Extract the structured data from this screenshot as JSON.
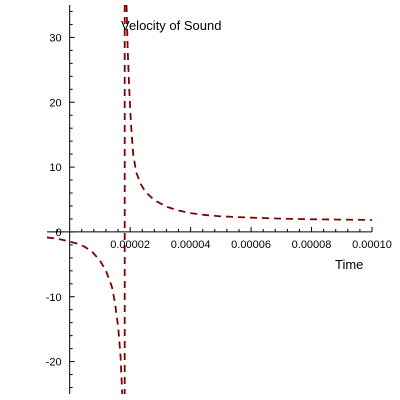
{
  "chart_data": {
    "type": "line",
    "title": "Velocity of Sound",
    "xlabel": "Time",
    "ylabel": "",
    "xlim": [
      -7.5e-06,
      0.0001
    ],
    "ylim": [
      -25,
      35
    ],
    "grid": false,
    "legend": "none",
    "line_color": "#7f0000",
    "line_style": "dashed",
    "x_ticks": [
      {
        "value": 2e-05,
        "label": "0.00002"
      },
      {
        "value": 4e-05,
        "label": "0.00004"
      },
      {
        "value": 6e-05,
        "label": "0.00006"
      },
      {
        "value": 8e-05,
        "label": "0.00008"
      },
      {
        "value": 0.0001,
        "label": "0.00010"
      }
    ],
    "y_ticks": [
      {
        "value": 30,
        "label": "30"
      },
      {
        "value": 20,
        "label": "20"
      },
      {
        "value": 10,
        "label": "10"
      },
      {
        "value": 0,
        "label": "0"
      },
      {
        "value": -10,
        "label": "-10"
      },
      {
        "value": -20,
        "label": "-20"
      }
    ],
    "asymptote_x": 1.82e-05,
    "series": [
      {
        "segments": [
          [
            {
              "x": -7.5e-06,
              "y": -0.85
            },
            {
              "x": -5e-06,
              "y": -1.0
            },
            {
              "x": -2.5e-06,
              "y": -1.2
            },
            {
              "x": 0.0,
              "y": -1.5
            },
            {
              "x": 2.5e-06,
              "y": -1.8
            },
            {
              "x": 5e-06,
              "y": -2.3
            },
            {
              "x": 7.5e-06,
              "y": -3.1
            },
            {
              "x": 1e-05,
              "y": -4.4
            },
            {
              "x": 1.2e-05,
              "y": -6.0
            },
            {
              "x": 1.4e-05,
              "y": -8.5
            },
            {
              "x": 1.5e-05,
              "y": -11.0
            },
            {
              "x": 1.6e-05,
              "y": -14.5
            },
            {
              "x": 1.68e-05,
              "y": -19.0
            },
            {
              "x": 1.74e-05,
              "y": -25.0
            }
          ],
          [
            {
              "x": 1.88e-05,
              "y": 35.0
            },
            {
              "x": 1.92e-05,
              "y": 28.0
            },
            {
              "x": 1.97e-05,
              "y": 22.0
            },
            {
              "x": 2.03e-05,
              "y": 16.5
            },
            {
              "x": 2.1e-05,
              "y": 12.0
            },
            {
              "x": 2.2e-05,
              "y": 9.2
            },
            {
              "x": 2.35e-05,
              "y": 7.4
            },
            {
              "x": 2.5e-05,
              "y": 6.2
            },
            {
              "x": 2.8e-05,
              "y": 4.9
            },
            {
              "x": 3.2e-05,
              "y": 3.9
            },
            {
              "x": 3.6e-05,
              "y": 3.3
            },
            {
              "x": 4e-05,
              "y": 2.9
            },
            {
              "x": 4.5e-05,
              "y": 2.6
            },
            {
              "x": 5e-05,
              "y": 2.4
            },
            {
              "x": 6e-05,
              "y": 2.2
            },
            {
              "x": 7e-05,
              "y": 2.05
            },
            {
              "x": 8e-05,
              "y": 1.95
            },
            {
              "x": 9e-05,
              "y": 1.9
            },
            {
              "x": 0.0001,
              "y": 1.85
            }
          ]
        ]
      }
    ]
  }
}
